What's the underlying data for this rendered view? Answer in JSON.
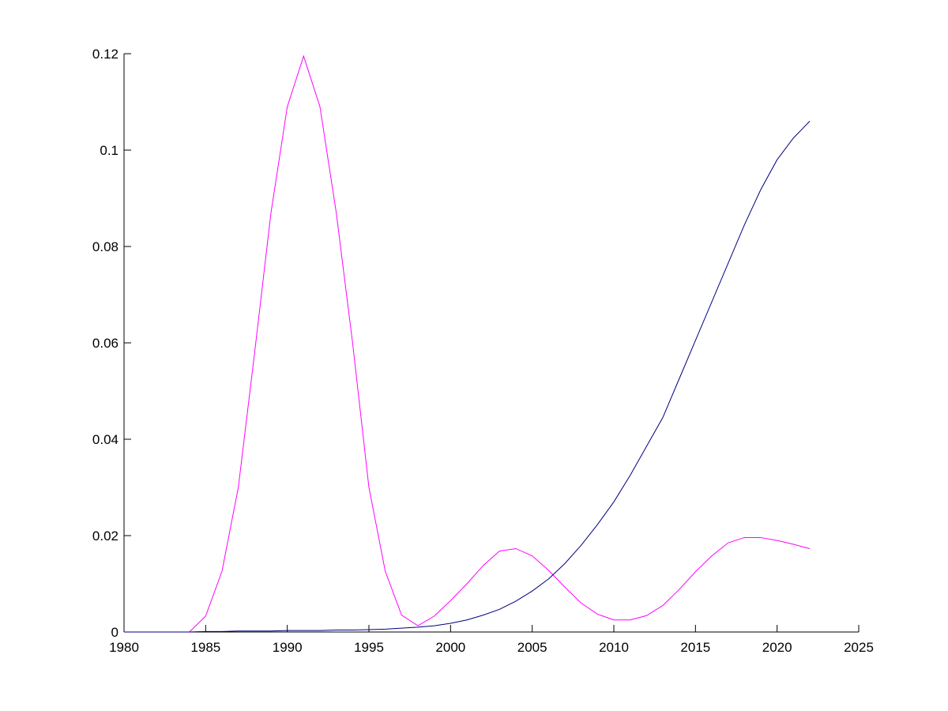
{
  "chart_data": {
    "type": "line",
    "x": [
      1980,
      1981,
      1982,
      1983,
      1984,
      1985,
      1986,
      1987,
      1988,
      1989,
      1990,
      1991,
      1992,
      1993,
      1994,
      1995,
      1996,
      1997,
      1998,
      1999,
      2000,
      2001,
      2002,
      2003,
      2004,
      2005,
      2006,
      2007,
      2008,
      2009,
      2010,
      2011,
      2012,
      2013,
      2014,
      2015,
      2016,
      2017,
      2018,
      2019,
      2020,
      2021,
      2022
    ],
    "series": [
      {
        "color": "#ff00ff",
        "values": [
          0,
          0,
          0,
          0,
          0,
          0.0033,
          0.0126,
          0.03,
          0.058,
          0.087,
          0.109,
          0.1195,
          0.109,
          0.087,
          0.06,
          0.03,
          0.0126,
          0.0035,
          0.0013,
          0.0033,
          0.0065,
          0.01,
          0.0138,
          0.0168,
          0.0173,
          0.0158,
          0.0128,
          0.0093,
          0.006,
          0.0037,
          0.0025,
          0.0025,
          0.0034,
          0.0055,
          0.0088,
          0.0125,
          0.0158,
          0.0185,
          0.0196,
          0.0196,
          0.019,
          0.0182,
          0.0173
        ]
      },
      {
        "color": "#000080",
        "values": [
          0,
          0,
          0,
          0,
          0,
          0.0001,
          0.0001,
          0.0002,
          0.0002,
          0.0002,
          0.0003,
          0.0003,
          0.0003,
          0.0004,
          0.0004,
          0.0005,
          0.0006,
          0.0008,
          0.001,
          0.0013,
          0.0018,
          0.0025,
          0.0035,
          0.0047,
          0.0064,
          0.0085,
          0.011,
          0.0142,
          0.018,
          0.0223,
          0.027,
          0.0325,
          0.0385,
          0.0445,
          0.0525,
          0.0605,
          0.0685,
          0.0765,
          0.0845,
          0.0918,
          0.098,
          0.1025,
          0.106
        ]
      }
    ],
    "xlim": [
      1980,
      2025
    ],
    "xticks": [
      1980,
      1985,
      1990,
      1995,
      2000,
      2005,
      2010,
      2015,
      2020,
      2025
    ],
    "ylim": [
      0,
      0.12
    ],
    "yticks": [
      0,
      0.02,
      0.04,
      0.06,
      0.08,
      0.1,
      0.12
    ]
  }
}
